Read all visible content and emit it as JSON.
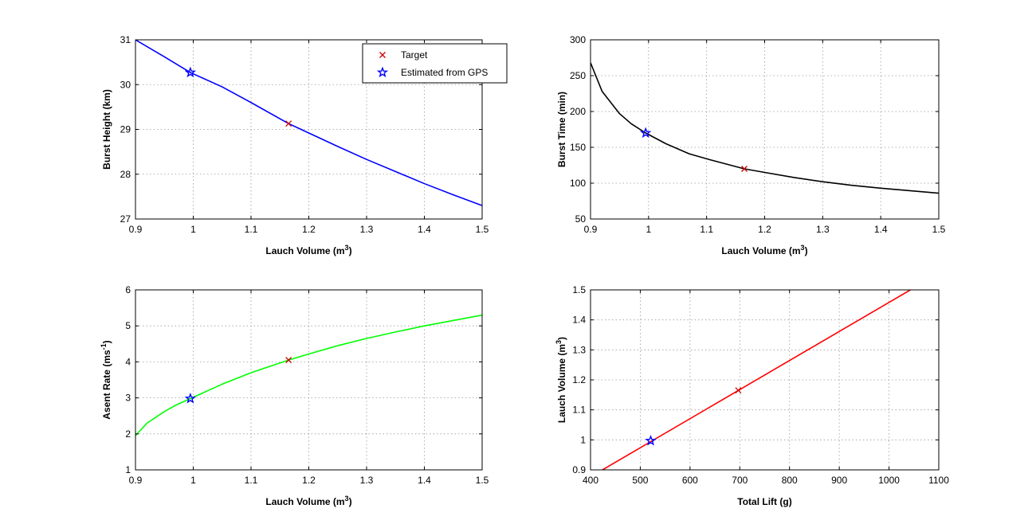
{
  "chart_data": [
    {
      "id": "burst-height",
      "type": "line",
      "xlabel": "Lauch Volume",
      "xunit": "m",
      "xunit_sup": "3",
      "ylabel": "Burst Height (km)",
      "xlim": [
        0.9,
        1.5
      ],
      "ylim": [
        27,
        31
      ],
      "xticks": [
        0.9,
        1,
        1.1,
        1.2,
        1.3,
        1.4,
        1.5
      ],
      "xtick_labels": [
        "0.9",
        "1",
        "1.1",
        "1.2",
        "1.3",
        "1.4",
        "1.5"
      ],
      "yticks": [
        27,
        28,
        29,
        30,
        31
      ],
      "ytick_labels": [
        "27",
        "28",
        "29",
        "30",
        "31"
      ],
      "grid": true,
      "color": "#0000ff",
      "x": [
        0.9,
        0.95,
        0.995,
        1.05,
        1.1,
        1.165,
        1.2,
        1.25,
        1.3,
        1.35,
        1.4,
        1.45,
        1.5
      ],
      "y": [
        31.0,
        30.62,
        30.27,
        29.95,
        29.6,
        29.13,
        28.92,
        28.62,
        28.33,
        28.06,
        27.79,
        27.54,
        27.3
      ],
      "target": {
        "x": 1.165,
        "y": 29.13
      },
      "gps": {
        "x": 0.995,
        "y": 30.27
      }
    },
    {
      "id": "burst-time",
      "type": "line",
      "xlabel": "Lauch Volume",
      "xunit": "m",
      "xunit_sup": "3",
      "ylabel": "Burst Time (min)",
      "xlim": [
        0.9,
        1.5
      ],
      "ylim": [
        50,
        300
      ],
      "xticks": [
        0.9,
        1,
        1.1,
        1.2,
        1.3,
        1.4,
        1.5
      ],
      "xtick_labels": [
        "0.9",
        "1",
        "1.1",
        "1.2",
        "1.3",
        "1.4",
        "1.5"
      ],
      "yticks": [
        50,
        100,
        150,
        200,
        250,
        300
      ],
      "ytick_labels": [
        "50",
        "100",
        "150",
        "200",
        "250",
        "300"
      ],
      "grid": true,
      "color": "#000000",
      "x": [
        0.9,
        0.92,
        0.95,
        0.97,
        0.995,
        1.03,
        1.07,
        1.1,
        1.165,
        1.2,
        1.25,
        1.3,
        1.35,
        1.4,
        1.45,
        1.5
      ],
      "y": [
        268,
        228,
        197,
        183,
        170,
        155,
        141,
        134,
        120,
        115,
        108,
        102,
        97,
        93,
        89.5,
        86
      ],
      "target": {
        "x": 1.165,
        "y": 120
      },
      "gps": {
        "x": 0.995,
        "y": 170
      }
    },
    {
      "id": "ascent-rate",
      "type": "line",
      "xlabel": "Lauch Volume",
      "xunit": "m",
      "xunit_sup": "3",
      "ylabel": "Asent Rate",
      "yunit": "ms",
      "yunit_sup": "-1",
      "xlim": [
        0.9,
        1.5
      ],
      "ylim": [
        1,
        6
      ],
      "xticks": [
        0.9,
        1,
        1.1,
        1.2,
        1.3,
        1.4,
        1.5
      ],
      "xtick_labels": [
        "0.9",
        "1",
        "1.1",
        "1.2",
        "1.3",
        "1.4",
        "1.5"
      ],
      "yticks": [
        1,
        2,
        3,
        4,
        5,
        6
      ],
      "ytick_labels": [
        "1",
        "2",
        "3",
        "4",
        "5",
        "6"
      ],
      "grid": true,
      "color": "#00ff00",
      "x": [
        0.9,
        0.92,
        0.95,
        0.97,
        0.995,
        1.05,
        1.1,
        1.165,
        1.2,
        1.25,
        1.3,
        1.35,
        1.4,
        1.45,
        1.5
      ],
      "y": [
        1.95,
        2.3,
        2.62,
        2.8,
        2.98,
        3.38,
        3.7,
        4.05,
        4.22,
        4.45,
        4.65,
        4.83,
        5.0,
        5.15,
        5.3
      ],
      "target": {
        "x": 1.165,
        "y": 4.05
      },
      "gps": {
        "x": 0.995,
        "y": 2.98
      }
    },
    {
      "id": "launch-volume",
      "type": "line",
      "xlabel": "Total Lift (g)",
      "ylabel": "Lauch Volume",
      "yunit": "m",
      "yunit_sup": "3",
      "xlim": [
        400,
        1100
      ],
      "ylim": [
        0.9,
        1.5
      ],
      "xticks": [
        400,
        500,
        600,
        700,
        800,
        900,
        1000,
        1100
      ],
      "xtick_labels": [
        "400",
        "500",
        "600",
        "700",
        "800",
        "900",
        "1000",
        "1100"
      ],
      "yticks": [
        0.9,
        1,
        1.1,
        1.2,
        1.3,
        1.4,
        1.5
      ],
      "ytick_labels": [
        "0.9",
        "1",
        "1.1",
        "1.2",
        "1.3",
        "1.4",
        "1.5"
      ],
      "grid": true,
      "color": "#ff0000",
      "x": [
        424,
        1043
      ],
      "y": [
        0.9,
        1.5
      ],
      "target": {
        "x": 697,
        "y": 1.165
      },
      "gps": {
        "x": 521,
        "y": 0.997
      }
    }
  ],
  "legend": {
    "target_label": "Target",
    "gps_label": "Estimated from GPS",
    "target_marker_color": "#cc0000",
    "gps_marker_color": "#0000ff"
  }
}
